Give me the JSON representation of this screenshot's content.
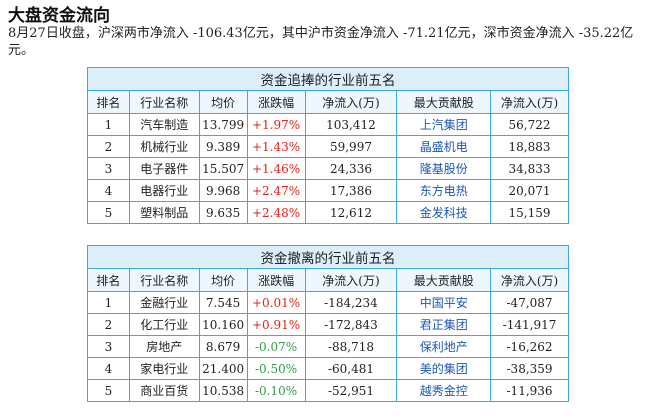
{
  "page": {
    "title": "大盘资金流向",
    "summary": "8月27日收盘，沪深两市净流入 -106.43亿元，其中沪市资金净流入 -71.21亿元，深市资金净流入 -35.22亿元。"
  },
  "colors": {
    "positive": "#e2231a",
    "negative": "#2f9e44",
    "link": "#1c57b8",
    "border": "#3fa9dd",
    "caption_bg": "#dbeefa"
  },
  "tables": [
    {
      "caption": "资金追捧的行业前五名",
      "headers": [
        "排名",
        "行业名称",
        "均价",
        "涨跌幅",
        "净流入(万)",
        "最大贡献股",
        "净流入(万)"
      ],
      "rows": [
        {
          "rank": "1",
          "industry": "汽车制造",
          "price": "13.799",
          "change": "+1.97%",
          "net": "103,412",
          "stock": "上汽集团",
          "stock_net": "56,722"
        },
        {
          "rank": "2",
          "industry": "机械行业",
          "price": "9.389",
          "change": "+1.43%",
          "net": "59,997",
          "stock": "晶盛机电",
          "stock_net": "18,883"
        },
        {
          "rank": "3",
          "industry": "电子器件",
          "price": "15.507",
          "change": "+1.46%",
          "net": "24,336",
          "stock": "隆基股份",
          "stock_net": "34,833"
        },
        {
          "rank": "4",
          "industry": "电器行业",
          "price": "9.968",
          "change": "+2.47%",
          "net": "17,386",
          "stock": "东方电热",
          "stock_net": "20,071"
        },
        {
          "rank": "5",
          "industry": "塑料制品",
          "price": "9.635",
          "change": "+2.48%",
          "net": "12,612",
          "stock": "金发科技",
          "stock_net": "15,159"
        }
      ]
    },
    {
      "caption": "资金撤离的行业前五名",
      "headers": [
        "排名",
        "行业名称",
        "均价",
        "涨跌幅",
        "净流入(万)",
        "最大贡献股",
        "净流入(万)"
      ],
      "rows": [
        {
          "rank": "1",
          "industry": "金融行业",
          "price": "7.545",
          "change": "+0.01%",
          "net": "-184,234",
          "stock": "中国平安",
          "stock_net": "-47,087"
        },
        {
          "rank": "2",
          "industry": "化工行业",
          "price": "10.160",
          "change": "+0.91%",
          "net": "-172,843",
          "stock": "君正集团",
          "stock_net": "-141,917"
        },
        {
          "rank": "3",
          "industry": "房地产",
          "price": "8.679",
          "change": "-0.07%",
          "net": "-88,718",
          "stock": "保利地产",
          "stock_net": "-16,262"
        },
        {
          "rank": "4",
          "industry": "家电行业",
          "price": "21.400",
          "change": "-0.50%",
          "net": "-60,481",
          "stock": "美的集团",
          "stock_net": "-38,359"
        },
        {
          "rank": "5",
          "industry": "商业百货",
          "price": "10.538",
          "change": "-0.10%",
          "net": "-52,951",
          "stock": "越秀金控",
          "stock_net": "-11,936"
        }
      ]
    }
  ]
}
